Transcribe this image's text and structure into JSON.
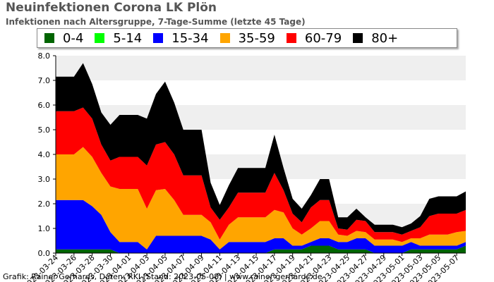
{
  "header": {
    "title": "Neuinfektionen Corona LK Plön",
    "subtitle": "Infektionen nach Altersgruppe, 7-Tage-Summe (letzte 45 Tage)"
  },
  "footer": {
    "credit": "Grafik: Rainer Gerhards, Daten: RKI (Stand: 2023-05-08) | www.rainer-gerhards.de"
  },
  "chart_data": {
    "type": "area",
    "stacked": true,
    "title": "Neuinfektionen Corona LK Plön",
    "subtitle": "Infektionen nach Altersgruppe, 7-Tage-Summe (letzte 45 Tage)",
    "xlabel": "",
    "ylabel": "",
    "ylim": [
      0,
      8
    ],
    "yticks": [
      "0.0",
      "1.0",
      "2.0",
      "3.0",
      "4.0",
      "5.0",
      "6.0",
      "7.0",
      "8.0"
    ],
    "grid": "horizontal bands",
    "legend_position": "top",
    "x_tick_labels": [
      "2023-03-24",
      "2023-03-26",
      "2023-03-28",
      "2023-03-30",
      "2023-04-01",
      "2023-04-03",
      "2023-04-05",
      "2023-04-07",
      "2023-04-09",
      "2023-04-11",
      "2023-04-13",
      "2023-04-15",
      "2023-04-17",
      "2023-04-19",
      "2023-04-21",
      "2023-04-23",
      "2023-04-25",
      "2023-04-27",
      "2023-04-29",
      "2023-05-01",
      "2023-05-03",
      "2023-05-05",
      "2023-05-07"
    ],
    "x": [
      "2023-03-24",
      "2023-03-25",
      "2023-03-26",
      "2023-03-27",
      "2023-03-28",
      "2023-03-29",
      "2023-03-30",
      "2023-03-31",
      "2023-04-01",
      "2023-04-02",
      "2023-04-03",
      "2023-04-04",
      "2023-04-05",
      "2023-04-06",
      "2023-04-07",
      "2023-04-08",
      "2023-04-09",
      "2023-04-10",
      "2023-04-11",
      "2023-04-12",
      "2023-04-13",
      "2023-04-14",
      "2023-04-15",
      "2023-04-16",
      "2023-04-17",
      "2023-04-18",
      "2023-04-19",
      "2023-04-20",
      "2023-04-21",
      "2023-04-22",
      "2023-04-23",
      "2023-04-24",
      "2023-04-25",
      "2023-04-26",
      "2023-04-27",
      "2023-04-28",
      "2023-04-29",
      "2023-04-30",
      "2023-05-01",
      "2023-05-02",
      "2023-05-03",
      "2023-05-04",
      "2023-05-05",
      "2023-05-06",
      "2023-05-07",
      "2023-05-08"
    ],
    "series": [
      {
        "name": "0-4",
        "color": "#006400",
        "values": [
          0.15,
          0.15,
          0.15,
          0.15,
          0.15,
          0.15,
          0.15,
          0.0,
          0.0,
          0.0,
          0.0,
          0.0,
          0.0,
          0.0,
          0.0,
          0.0,
          0.0,
          0.0,
          0.0,
          0.0,
          0.0,
          0.0,
          0.0,
          0.0,
          0.15,
          0.15,
          0.15,
          0.15,
          0.3,
          0.3,
          0.3,
          0.15,
          0.15,
          0.15,
          0.15,
          0.0,
          0.0,
          0.0,
          0.0,
          0.15,
          0.15,
          0.15,
          0.15,
          0.15,
          0.15,
          0.3
        ]
      },
      {
        "name": "5-14",
        "color": "#00ff00",
        "values": [
          0,
          0,
          0,
          0,
          0,
          0,
          0,
          0,
          0,
          0,
          0,
          0,
          0,
          0,
          0,
          0,
          0,
          0,
          0,
          0,
          0,
          0,
          0,
          0,
          0,
          0,
          0,
          0,
          0,
          0,
          0,
          0,
          0,
          0,
          0,
          0,
          0,
          0,
          0,
          0,
          0,
          0,
          0,
          0,
          0,
          0
        ]
      },
      {
        "name": "15-34",
        "color": "#0000ff",
        "values": [
          2.0,
          2.0,
          2.0,
          2.0,
          1.75,
          1.4,
          0.7,
          0.45,
          0.45,
          0.45,
          0.15,
          0.7,
          0.7,
          0.7,
          0.7,
          0.7,
          0.7,
          0.55,
          0.15,
          0.45,
          0.45,
          0.45,
          0.45,
          0.45,
          0.45,
          0.45,
          0.15,
          0.15,
          0.15,
          0.3,
          0.3,
          0.3,
          0.3,
          0.45,
          0.45,
          0.3,
          0.3,
          0.3,
          0.3,
          0.3,
          0.15,
          0.15,
          0.15,
          0.15,
          0.15,
          0.15
        ]
      },
      {
        "name": "35-59",
        "color": "#ffa500",
        "values": [
          1.85,
          1.85,
          1.85,
          2.15,
          2.0,
          1.7,
          1.85,
          2.15,
          2.15,
          2.15,
          1.65,
          1.85,
          1.9,
          1.45,
          0.85,
          0.85,
          0.85,
          0.7,
          0.4,
          0.7,
          1.0,
          1.0,
          1.0,
          1.0,
          1.15,
          1.05,
          0.7,
          0.45,
          0.55,
          0.7,
          0.7,
          0.3,
          0.25,
          0.3,
          0.25,
          0.25,
          0.25,
          0.25,
          0.15,
          0.15,
          0.3,
          0.45,
          0.45,
          0.45,
          0.55,
          0.45
        ]
      },
      {
        "name": "60-79",
        "color": "#ff0000",
        "values": [
          1.75,
          1.75,
          1.75,
          1.6,
          1.55,
          1.15,
          1.05,
          1.3,
          1.3,
          1.3,
          1.75,
          1.85,
          1.9,
          1.85,
          1.6,
          1.6,
          1.6,
          0.6,
          0.8,
          0.7,
          1.0,
          1.0,
          1.0,
          1.0,
          1.5,
          0.9,
          0.6,
          0.5,
          0.85,
          0.85,
          0.85,
          0.25,
          0.25,
          0.45,
          0.45,
          0.3,
          0.3,
          0.3,
          0.3,
          0.3,
          0.45,
          0.75,
          0.85,
          0.85,
          0.75,
          0.85
        ]
      },
      {
        "name": "80+",
        "color": "#000000",
        "values": [
          1.4,
          1.4,
          1.4,
          1.8,
          1.4,
          1.3,
          1.45,
          1.7,
          1.7,
          1.7,
          1.9,
          2.05,
          2.45,
          2.1,
          1.85,
          1.85,
          1.85,
          1.0,
          0.6,
          0.9,
          1.0,
          1.0,
          1.0,
          1.0,
          1.55,
          0.9,
          0.6,
          0.55,
          0.5,
          0.85,
          0.85,
          0.45,
          0.5,
          0.45,
          0.15,
          0.3,
          0.3,
          0.3,
          0.3,
          0.3,
          0.45,
          0.7,
          0.7,
          0.7,
          0.7,
          0.75
        ]
      }
    ]
  }
}
